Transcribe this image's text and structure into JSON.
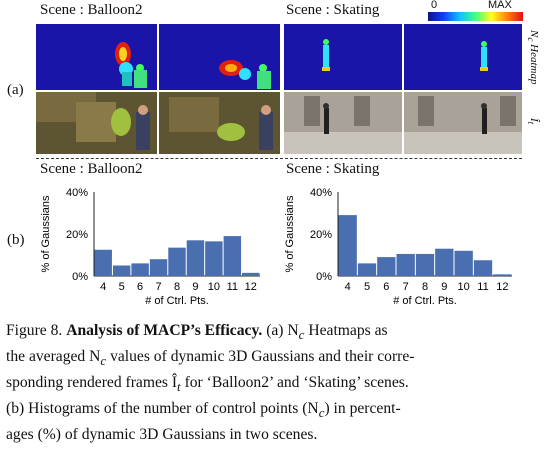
{
  "panel_a": {
    "label": "(a)",
    "scene_left": "Scene : Balloon2",
    "scene_right": "Scene : Skating",
    "colorbar_min": "0",
    "colorbar_max": "MAX",
    "row_label_heatmap": "Nc Heatmap",
    "row_label_frame": "Ît",
    "colors": {
      "heat_bg": "#1a14a8"
    }
  },
  "panel_b": {
    "label": "(b)",
    "scene_left": "Scene : Balloon2",
    "scene_right": "Scene : Skating"
  },
  "chart_data": [
    {
      "type": "bar",
      "title": "Scene : Balloon2",
      "categories": [
        "4",
        "5",
        "6",
        "7",
        "8",
        "9",
        "10",
        "11",
        "12"
      ],
      "values": [
        12.5,
        5.0,
        6.0,
        8.0,
        13.5,
        17.0,
        16.5,
        19.0,
        1.5
      ],
      "xlabel": "# of Ctrl. Pts.",
      "ylabel": "% of Gaussians",
      "yticks": [
        "0%",
        "20%",
        "40%"
      ],
      "ylim": [
        0,
        40
      ],
      "color": "#4a6fb0"
    },
    {
      "type": "bar",
      "title": "Scene : Skating",
      "categories": [
        "4",
        "5",
        "6",
        "7",
        "8",
        "9",
        "10",
        "11",
        "12"
      ],
      "values": [
        29.0,
        6.0,
        9.0,
        10.5,
        10.5,
        13.0,
        12.0,
        7.5,
        0.8
      ],
      "xlabel": "# of Ctrl. Pts.",
      "ylabel": "% of Gaussians",
      "yticks": [
        "0%",
        "20%",
        "40%"
      ],
      "ylim": [
        0,
        40
      ],
      "color": "#4a6fb0"
    }
  ],
  "caption": {
    "fig": "Figure 8.",
    "title": "Analysis of MACP’s Efficacy.",
    "line1_rest": "(a) N",
    "line1_end": " Heatmaps as",
    "line2a": "the averaged N",
    "line2b": " values of dynamic 3D Gaussians and their corre-",
    "line3a": "sponding rendered frames Î",
    "line3b": " for ‘Balloon2’ and ‘Skating’ scenes.",
    "line4a": "(b) Histograms of the number of control points (N",
    "line4b": ") in percent-",
    "line5": "ages (%) of dynamic 3D Gaussians in two scenes.",
    "sub_c": "c",
    "sub_t": "t"
  }
}
